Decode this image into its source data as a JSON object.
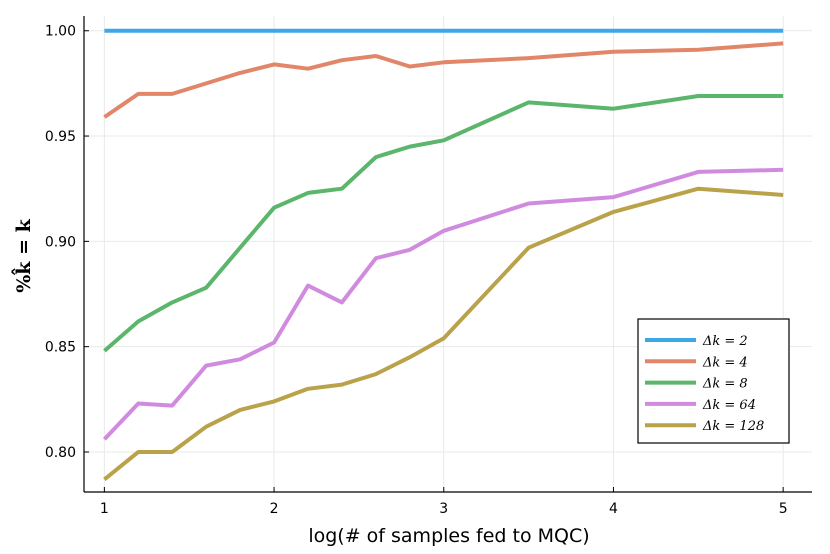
{
  "chart_data": {
    "type": "line",
    "title": "",
    "xlabel": "log(# of samples fed to MQC)",
    "ylabel": "%k̂ = k",
    "xlim": [
      0.88,
      5.17
    ],
    "ylim": [
      0.781,
      1.007
    ],
    "xticks": [
      1,
      2,
      3,
      4,
      5
    ],
    "xtick_labels": [
      "1",
      "2",
      "3",
      "4",
      "5"
    ],
    "yticks": [
      0.8,
      0.85,
      0.9,
      0.95,
      1.0
    ],
    "ytick_labels": [
      "0.80",
      "0.85",
      "0.90",
      "0.95",
      "1.00"
    ],
    "grid": true,
    "legend_position": "bottom-right",
    "series": [
      {
        "name": "Δk = 2",
        "color": "#3da8e8",
        "x": [
          1,
          1.2,
          1.4,
          1.6,
          1.8,
          2,
          2.2,
          2.4,
          2.6,
          2.8,
          3,
          3.5,
          4,
          4.5,
          5
        ],
        "y": [
          1.0,
          1.0,
          1.0,
          1.0,
          1.0,
          1.0,
          1.0,
          1.0,
          1.0,
          1.0,
          1.0,
          1.0,
          1.0,
          1.0,
          1.0
        ]
      },
      {
        "name": "Δk = 4",
        "color": "#e2866a",
        "x": [
          1,
          1.2,
          1.4,
          1.6,
          1.8,
          2,
          2.2,
          2.4,
          2.6,
          2.8,
          3,
          3.5,
          4,
          4.5,
          5
        ],
        "y": [
          0.959,
          0.97,
          0.97,
          0.975,
          0.98,
          0.984,
          0.982,
          0.986,
          0.988,
          0.983,
          0.985,
          0.987,
          0.99,
          0.991,
          0.994
        ]
      },
      {
        "name": "Δk = 8",
        "color": "#5bb56b",
        "x": [
          1,
          1.2,
          1.4,
          1.6,
          1.8,
          2,
          2.2,
          2.4,
          2.6,
          2.8,
          3,
          3.5,
          4,
          4.5,
          5
        ],
        "y": [
          0.848,
          0.862,
          0.871,
          0.878,
          0.897,
          0.916,
          0.923,
          0.925,
          0.94,
          0.945,
          0.948,
          0.966,
          0.963,
          0.969,
          0.969
        ]
      },
      {
        "name": "Δk = 64",
        "color": "#d08bdf",
        "x": [
          1,
          1.2,
          1.4,
          1.6,
          1.8,
          2,
          2.2,
          2.4,
          2.6,
          2.8,
          3,
          3.5,
          4,
          4.5,
          5
        ],
        "y": [
          0.806,
          0.823,
          0.822,
          0.841,
          0.844,
          0.852,
          0.879,
          0.871,
          0.892,
          0.896,
          0.905,
          0.918,
          0.921,
          0.933,
          0.934
        ]
      },
      {
        "name": "Δk = 128",
        "color": "#baa24a",
        "x": [
          1,
          1.2,
          1.4,
          1.6,
          1.8,
          2,
          2.2,
          2.4,
          2.6,
          2.8,
          3,
          3.5,
          4,
          4.5,
          5
        ],
        "y": [
          0.787,
          0.8,
          0.8,
          0.812,
          0.82,
          0.824,
          0.83,
          0.832,
          0.837,
          0.845,
          0.854,
          0.897,
          0.914,
          0.925,
          0.922
        ]
      }
    ]
  }
}
